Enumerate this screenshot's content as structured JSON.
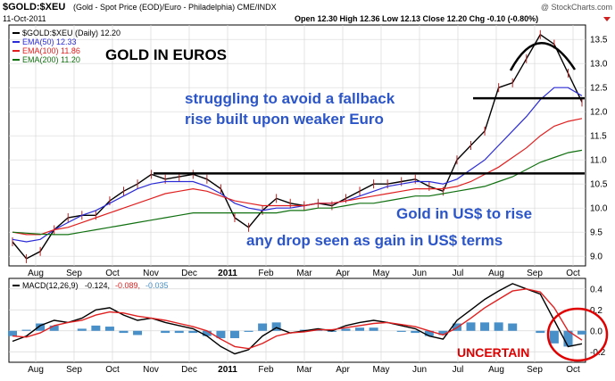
{
  "header": {
    "symbol": "$GOLD:$XEU",
    "description": "(Gold - Spot Price (EOD)/Euro - Philadelphia) CME/INDX",
    "date": "11-Oct-2011",
    "ohlc": "Open 12.30   High 12.36   Low 12.13   Close 12.20   Chg -0.10 (-0.80%)",
    "watermark": "@ StockCharts.com"
  },
  "legend": {
    "main": "$GOLD:$XEU (Daily) 12.20",
    "ema50": "EMA(50) 12.33",
    "ema100": "EMA(100) 11.86",
    "ema200": "EMA(200) 11.20"
  },
  "macd_legend": {
    "label": "MACD(12,26,9)",
    "macd": "-0.124,",
    "signal": "-0.089,",
    "hist": "-0.035"
  },
  "annotations": {
    "title": "GOLD IN EUROS",
    "line1": "struggling to avoid a fallback",
    "line2": "rise built upon weaker Euro",
    "line3": "Gold in US$ to rise",
    "line4": "any drop seen as gain in US$ terms",
    "uncertain": "UNCERTAIN"
  },
  "colors": {
    "price": "#000000",
    "ema50": "#2b2bd6",
    "ema100": "#e02020",
    "ema200": "#107010",
    "annotation_blue": "#2b55c8",
    "annotation_red": "#e00000",
    "macd": "#000000",
    "signal": "#e02020",
    "histogram": "#4a90c8",
    "grid": "#d8d8d8"
  },
  "chart_data": [
    {
      "type": "line",
      "name": "price",
      "x_labels": [
        "Aug",
        "Sep",
        "Oct",
        "Nov",
        "Dec",
        "2011",
        "Feb",
        "Mar",
        "Apr",
        "May",
        "Jun",
        "Jul",
        "Aug",
        "Sep",
        "Oct"
      ],
      "y_ticks": [
        9.0,
        9.5,
        10.0,
        10.5,
        11.0,
        11.5,
        12.0,
        12.5,
        13.0,
        13.5
      ],
      "ylim": [
        8.8,
        13.8
      ],
      "resistance_line": 10.72,
      "support_line": 12.28,
      "series": [
        {
          "name": "$GOLD:$XEU",
          "values": [
            9.3,
            8.95,
            9.1,
            9.55,
            9.8,
            9.85,
            9.85,
            10.15,
            10.35,
            10.5,
            10.7,
            10.6,
            10.65,
            10.7,
            10.6,
            10.4,
            9.8,
            9.6,
            9.95,
            10.2,
            10.1,
            10.05,
            10.1,
            10.05,
            10.2,
            10.35,
            10.5,
            10.5,
            10.55,
            10.6,
            10.45,
            10.35,
            11.0,
            11.3,
            11.6,
            12.5,
            12.6,
            13.1,
            13.6,
            13.4,
            12.8,
            12.2
          ]
        },
        {
          "name": "EMA(50)",
          "values": [
            9.35,
            9.3,
            9.35,
            9.55,
            9.7,
            9.85,
            9.95,
            10.1,
            10.25,
            10.4,
            10.5,
            10.55,
            10.55,
            10.55,
            10.45,
            10.3,
            10.1,
            10.0,
            9.95,
            10.0,
            10.0,
            10.05,
            10.1,
            10.1,
            10.15,
            10.25,
            10.35,
            10.45,
            10.5,
            10.55,
            10.55,
            10.5,
            10.6,
            10.8,
            11.0,
            11.3,
            11.6,
            11.9,
            12.25,
            12.5,
            12.5,
            12.33
          ]
        },
        {
          "name": "EMA(100)",
          "values": [
            9.5,
            9.45,
            9.45,
            9.55,
            9.6,
            9.7,
            9.8,
            9.9,
            10.0,
            10.1,
            10.2,
            10.3,
            10.35,
            10.4,
            10.35,
            10.25,
            10.15,
            10.1,
            10.05,
            10.05,
            10.05,
            10.05,
            10.1,
            10.1,
            10.15,
            10.2,
            10.25,
            10.3,
            10.35,
            10.4,
            10.4,
            10.4,
            10.45,
            10.55,
            10.7,
            10.85,
            11.05,
            11.25,
            11.5,
            11.7,
            11.8,
            11.86
          ]
        },
        {
          "name": "EMA(200)",
          "values": [
            9.5,
            9.48,
            9.46,
            9.45,
            9.45,
            9.5,
            9.55,
            9.6,
            9.65,
            9.7,
            9.75,
            9.8,
            9.85,
            9.9,
            9.9,
            9.9,
            9.9,
            9.9,
            9.9,
            9.9,
            9.95,
            9.95,
            10.0,
            10.0,
            10.05,
            10.1,
            10.1,
            10.15,
            10.2,
            10.25,
            10.25,
            10.3,
            10.35,
            10.4,
            10.45,
            10.55,
            10.65,
            10.8,
            10.95,
            11.05,
            11.15,
            11.2
          ]
        }
      ]
    },
    {
      "type": "line",
      "name": "macd",
      "y_ticks": [
        -0.2,
        0.0,
        0.2,
        0.4
      ],
      "ylim": [
        -0.3,
        0.5
      ],
      "series": [
        {
          "name": "MACD",
          "values": [
            -0.1,
            -0.05,
            0.05,
            0.1,
            0.08,
            0.12,
            0.2,
            0.22,
            0.15,
            0.1,
            0.12,
            0.08,
            0.05,
            0.02,
            -0.05,
            -0.15,
            -0.22,
            -0.18,
            -0.05,
            0.03,
            -0.02,
            0.0,
            0.02,
            0.0,
            0.05,
            0.08,
            0.1,
            0.08,
            0.05,
            0.02,
            -0.05,
            -0.08,
            0.1,
            0.2,
            0.3,
            0.38,
            0.45,
            0.4,
            0.35,
            0.1,
            -0.15,
            -0.124
          ]
        },
        {
          "name": "Signal",
          "values": [
            -0.05,
            -0.06,
            -0.02,
            0.05,
            0.08,
            0.1,
            0.15,
            0.18,
            0.17,
            0.14,
            0.12,
            0.1,
            0.07,
            0.04,
            0.0,
            -0.08,
            -0.15,
            -0.17,
            -0.12,
            -0.05,
            -0.02,
            -0.01,
            0.01,
            0.01,
            0.03,
            0.05,
            0.07,
            0.08,
            0.06,
            0.04,
            0.0,
            -0.04,
            0.03,
            0.12,
            0.22,
            0.3,
            0.38,
            0.4,
            0.37,
            0.22,
            0.0,
            -0.089
          ]
        }
      ]
    }
  ]
}
